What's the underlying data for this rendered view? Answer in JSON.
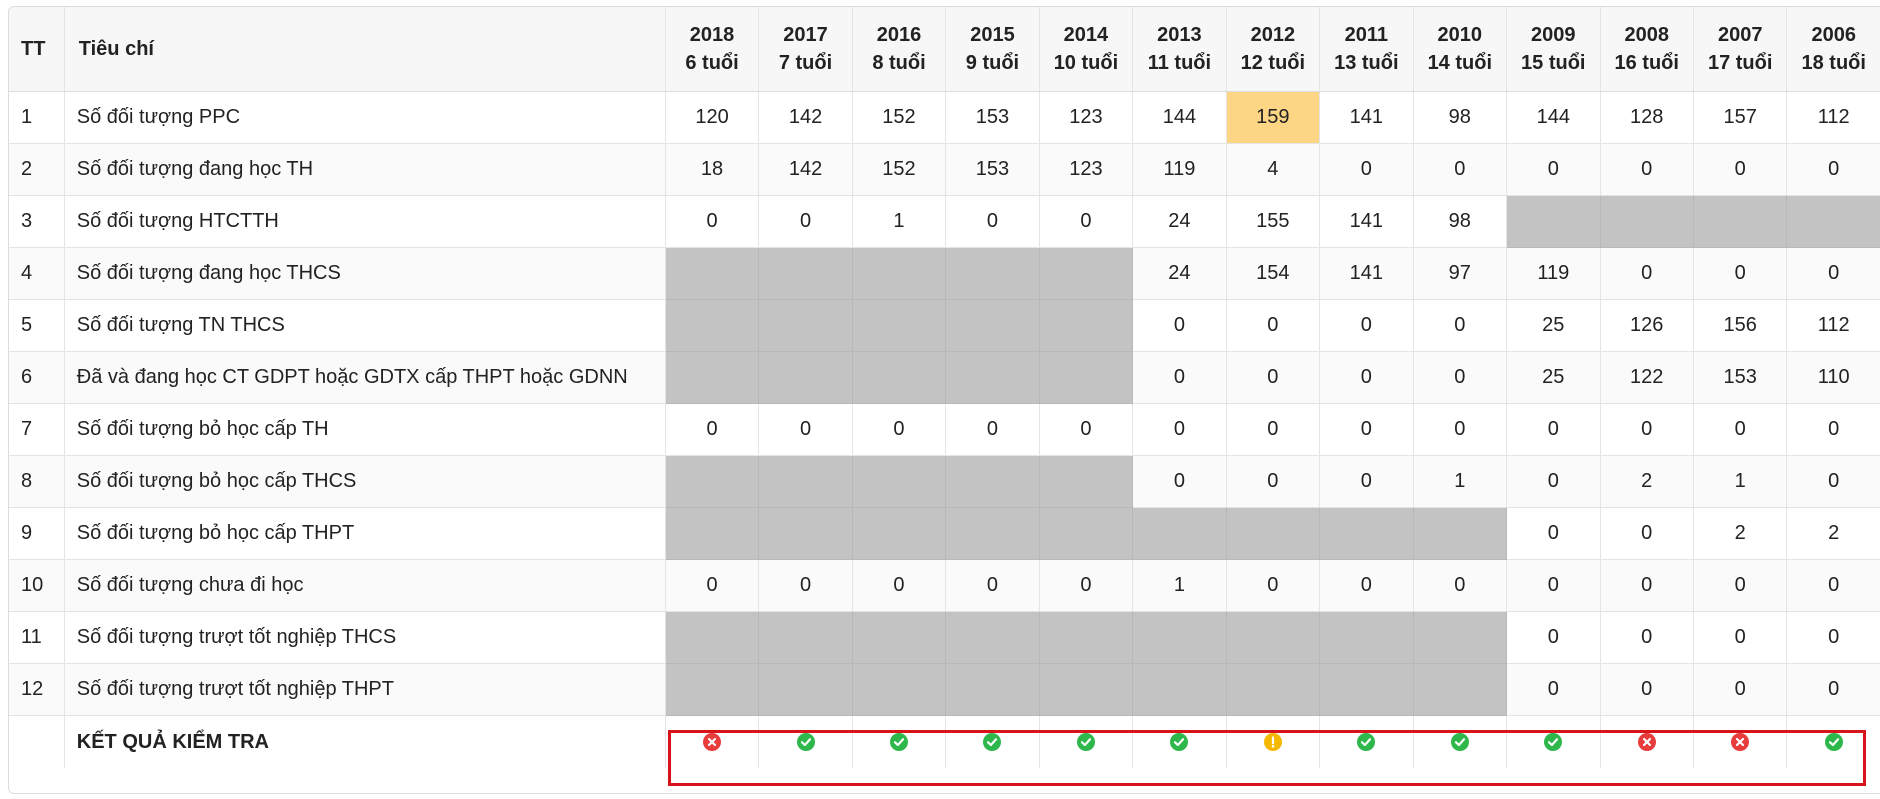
{
  "table": {
    "header": {
      "tt": "TT",
      "criteria": "Tiêu chí",
      "years": [
        {
          "year": "2018",
          "age": "6 tuổi"
        },
        {
          "year": "2017",
          "age": "7 tuổi"
        },
        {
          "year": "2016",
          "age": "8 tuổi"
        },
        {
          "year": "2015",
          "age": "9 tuổi"
        },
        {
          "year": "2014",
          "age": "10 tuổi"
        },
        {
          "year": "2013",
          "age": "11 tuổi"
        },
        {
          "year": "2012",
          "age": "12 tuổi"
        },
        {
          "year": "2011",
          "age": "13 tuổi"
        },
        {
          "year": "2010",
          "age": "14 tuổi"
        },
        {
          "year": "2009",
          "age": "15 tuổi"
        },
        {
          "year": "2008",
          "age": "16 tuổi"
        },
        {
          "year": "2007",
          "age": "17 tuổi"
        },
        {
          "year": "2006",
          "age": "18 tuổi"
        }
      ]
    },
    "rows": [
      {
        "tt": "1",
        "label": "Số đối tượng PPC",
        "values": [
          "120",
          "142",
          "152",
          "153",
          "123",
          "144",
          "159",
          "141",
          "98",
          "144",
          "128",
          "157",
          "112"
        ]
      },
      {
        "tt": "2",
        "label": "Số đối tượng đang học TH",
        "values": [
          "18",
          "142",
          "152",
          "153",
          "123",
          "119",
          "4",
          "0",
          "0",
          "0",
          "0",
          "0",
          "0"
        ]
      },
      {
        "tt": "3",
        "label": "Số đối tượng HTCTTH",
        "values": [
          "0",
          "0",
          "1",
          "0",
          "0",
          "24",
          "155",
          "141",
          "98",
          null,
          null,
          null,
          null
        ]
      },
      {
        "tt": "4",
        "label": "Số đối tượng đang học THCS",
        "values": [
          null,
          null,
          null,
          null,
          null,
          "24",
          "154",
          "141",
          "97",
          "119",
          "0",
          "0",
          "0"
        ]
      },
      {
        "tt": "5",
        "label": "Số đối tượng TN THCS",
        "values": [
          null,
          null,
          null,
          null,
          null,
          "0",
          "0",
          "0",
          "0",
          "25",
          "126",
          "156",
          "112"
        ]
      },
      {
        "tt": "6",
        "label": "Đã và đang học CT GDPT hoặc GDTX cấp THPT hoặc GDNN",
        "values": [
          null,
          null,
          null,
          null,
          null,
          "0",
          "0",
          "0",
          "0",
          "25",
          "122",
          "153",
          "110"
        ]
      },
      {
        "tt": "7",
        "label": "Số đối tượng bỏ học cấp TH",
        "values": [
          "0",
          "0",
          "0",
          "0",
          "0",
          "0",
          "0",
          "0",
          "0",
          "0",
          "0",
          "0",
          "0"
        ]
      },
      {
        "tt": "8",
        "label": "Số đối tượng bỏ học cấp THCS",
        "values": [
          null,
          null,
          null,
          null,
          null,
          "0",
          "0",
          "0",
          "1",
          "0",
          "2",
          "1",
          "0"
        ]
      },
      {
        "tt": "9",
        "label": "Số đối tượng bỏ học cấp THPT",
        "values": [
          null,
          null,
          null,
          null,
          null,
          null,
          null,
          null,
          null,
          "0",
          "0",
          "2",
          "2"
        ]
      },
      {
        "tt": "10",
        "label": "Số đối tượng chưa đi học",
        "values": [
          "0",
          "0",
          "0",
          "0",
          "0",
          "1",
          "0",
          "0",
          "0",
          "0",
          "0",
          "0",
          "0"
        ]
      },
      {
        "tt": "11",
        "label": "Số đối tượng trượt tốt nghiệp THCS",
        "values": [
          null,
          null,
          null,
          null,
          null,
          null,
          null,
          null,
          null,
          "0",
          "0",
          "0",
          "0"
        ]
      },
      {
        "tt": "12",
        "label": "Số đối tượng trượt tốt nghiệp THPT",
        "values": [
          null,
          null,
          null,
          null,
          null,
          null,
          null,
          null,
          null,
          "0",
          "0",
          "0",
          "0"
        ]
      }
    ],
    "highlighted_cell": {
      "row": "1",
      "year": "2012",
      "color": "#fdd685"
    },
    "result": {
      "label": "KẾT QUẢ KIỂM TRA",
      "statuses": [
        "fail",
        "pass",
        "pass",
        "pass",
        "pass",
        "pass",
        "warning",
        "pass",
        "pass",
        "pass",
        "fail",
        "fail",
        "pass"
      ],
      "icons": {
        "pass": "check-circle-icon",
        "fail": "x-circle-icon",
        "warning": "exclamation-circle-icon"
      }
    },
    "colors": {
      "disabled_cell": "#c3c3c3",
      "pass": "#2eb84b",
      "fail": "#e83b3b",
      "warning": "#f5b800",
      "annotation_frame": "#d8141a"
    }
  }
}
